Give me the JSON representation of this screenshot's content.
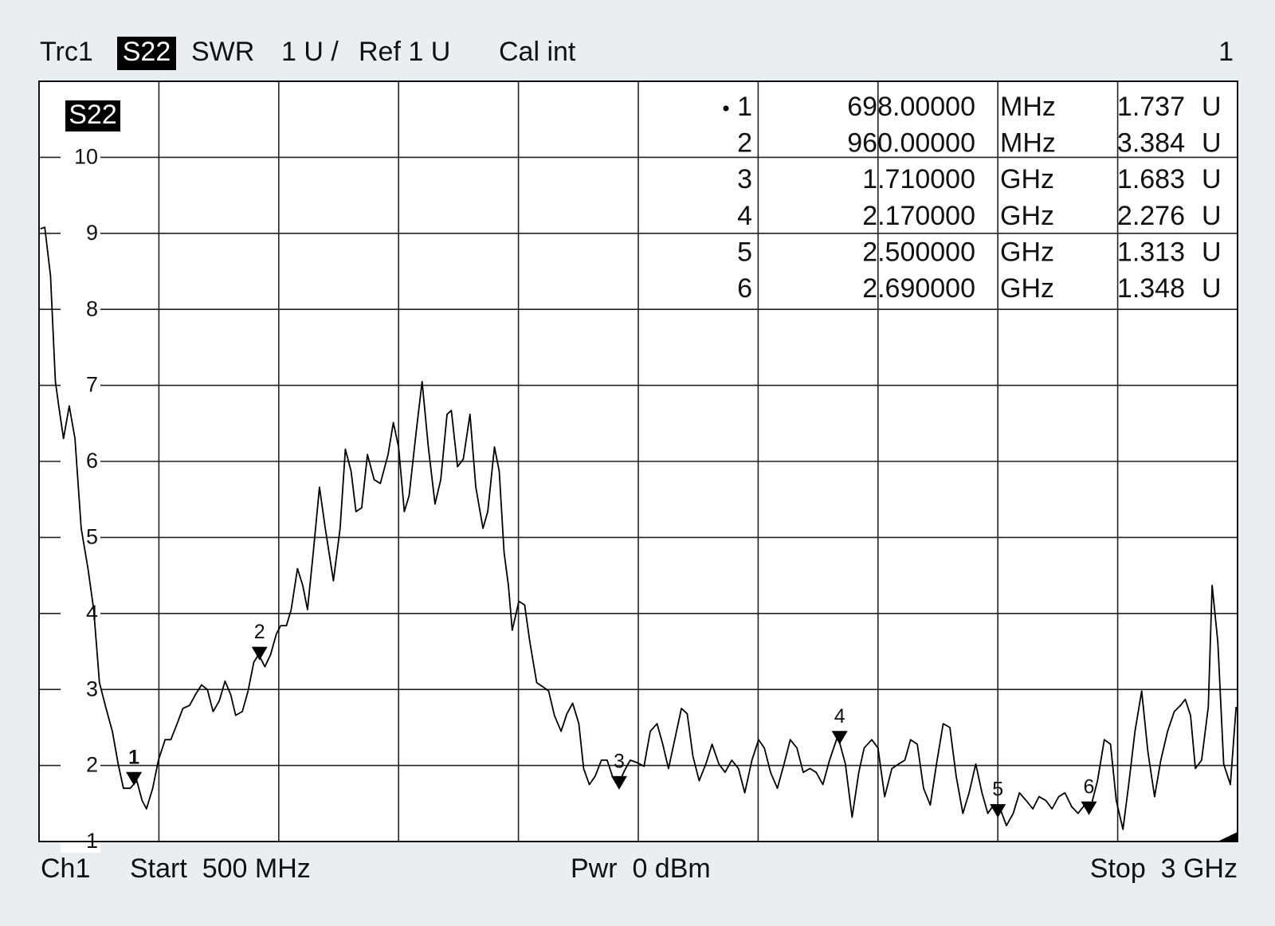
{
  "chart_data": {
    "type": "line",
    "trace": "Trc1",
    "measurement": "S22",
    "format": "SWR",
    "scale": "1 U /",
    "reference": "Ref 1 U",
    "calibration": "Cal int",
    "window": "1",
    "channel": "Ch1",
    "start": "Start  500 MHz",
    "power": "Pwr  0 dBm",
    "stop": "Stop  3 GHz",
    "color": "#000000",
    "grid": true,
    "xlim": [
      500,
      3000
    ],
    "xticks": [
      500,
      750,
      1000,
      1250,
      1500,
      1750,
      2000,
      2250,
      2500,
      2750,
      3000
    ],
    "ylim": [
      1,
      11
    ],
    "yticks": [
      1,
      2,
      3,
      4,
      5,
      6,
      7,
      8,
      9,
      10
    ],
    "x": [
      503,
      512,
      524,
      534,
      541,
      551,
      563,
      575,
      588,
      602,
      614,
      626,
      639,
      653,
      665,
      676,
      690,
      704,
      715,
      724,
      737,
      749,
      763,
      775,
      788,
      800,
      814,
      826,
      839,
      851,
      863,
      876,
      888,
      900,
      910,
      924,
      936,
      948,
      958,
      971,
      983,
      995,
      1004,
      1016,
      1026,
      1039,
      1050,
      1060,
      1072,
      1085,
      1097,
      1114,
      1128,
      1139,
      1151,
      1161,
      1173,
      1185,
      1199,
      1212,
      1228,
      1239,
      1250,
      1262,
      1272,
      1287,
      1299,
      1312,
      1326,
      1338,
      1351,
      1360,
      1373,
      1385,
      1399,
      1411,
      1426,
      1436,
      1450,
      1460,
      1470,
      1479,
      1487,
      1501,
      1513,
      1524,
      1538,
      1552,
      1563,
      1575,
      1589,
      1601,
      1613,
      1626,
      1636,
      1648,
      1660,
      1673,
      1685,
      1696,
      1708,
      1721,
      1733,
      1747,
      1762,
      1775,
      1789,
      1801,
      1813,
      1826,
      1840,
      1852,
      1864,
      1877,
      1891,
      1904,
      1918,
      1931,
      1945,
      1959,
      1972,
      1987,
      2001,
      2013,
      2026,
      2040,
      2054,
      2067,
      2081,
      2094,
      2108,
      2121,
      2135,
      2149,
      2166,
      2182,
      2196,
      2210,
      2221,
      2237,
      2250,
      2264,
      2279,
      2293,
      2306,
      2318,
      2332,
      2345,
      2359,
      2372,
      2386,
      2400,
      2413,
      2427,
      2440,
      2454,
      2467,
      2479,
      2491,
      2505,
      2518,
      2532,
      2545,
      2559,
      2573,
      2586,
      2600,
      2613,
      2627,
      2640,
      2654,
      2667,
      2681,
      2695,
      2708,
      2722,
      2735,
      2747,
      2761,
      2773,
      2786,
      2800,
      2813,
      2827,
      2840,
      2854,
      2868,
      2881,
      2891,
      2902,
      2912,
      2925,
      2939,
      2947,
      2959,
      2971,
      2985,
      2997
    ],
    "values": [
      9.06,
      9.08,
      8.44,
      7.05,
      6.73,
      6.3,
      6.73,
      6.3,
      5.12,
      4.59,
      4.05,
      3.09,
      2.77,
      2.45,
      2.02,
      1.7,
      1.7,
      1.8,
      1.54,
      1.43,
      1.7,
      2.07,
      2.34,
      2.34,
      2.55,
      2.75,
      2.79,
      2.93,
      3.06,
      3.0,
      2.71,
      2.85,
      3.11,
      2.93,
      2.66,
      2.71,
      2.98,
      3.36,
      3.46,
      3.3,
      3.46,
      3.73,
      3.84,
      3.84,
      4.05,
      4.59,
      4.37,
      4.05,
      4.8,
      5.66,
      5.12,
      4.43,
      5.12,
      6.16,
      5.87,
      5.34,
      5.39,
      6.09,
      5.76,
      5.71,
      6.09,
      6.51,
      6.19,
      5.34,
      5.55,
      6.41,
      7.05,
      6.19,
      5.44,
      5.76,
      6.62,
      6.67,
      5.93,
      6.03,
      6.62,
      5.66,
      5.12,
      5.34,
      6.19,
      5.87,
      4.8,
      4.37,
      3.78,
      4.16,
      4.11,
      3.62,
      3.09,
      3.03,
      2.98,
      2.66,
      2.45,
      2.68,
      2.82,
      2.55,
      1.96,
      1.75,
      1.86,
      2.07,
      2.07,
      1.86,
      1.75,
      1.93,
      2.07,
      2.04,
      1.99,
      2.45,
      2.55,
      2.28,
      1.96,
      2.34,
      2.75,
      2.68,
      2.12,
      1.8,
      2.02,
      2.28,
      2.02,
      1.91,
      2.07,
      1.96,
      1.64,
      2.07,
      2.34,
      2.23,
      1.91,
      1.7,
      2.02,
      2.34,
      2.23,
      1.91,
      1.96,
      1.91,
      1.75,
      2.07,
      2.39,
      2.02,
      1.32,
      1.91,
      2.23,
      2.34,
      2.23,
      1.59,
      1.96,
      2.02,
      2.07,
      2.34,
      2.28,
      1.7,
      1.48,
      2.02,
      2.55,
      2.5,
      1.86,
      1.37,
      1.64,
      2.02,
      1.64,
      1.37,
      1.48,
      1.43,
      1.21,
      1.37,
      1.64,
      1.54,
      1.43,
      1.59,
      1.54,
      1.43,
      1.59,
      1.64,
      1.46,
      1.37,
      1.48,
      1.48,
      1.8,
      2.34,
      2.28,
      1.54,
      1.16,
      1.75,
      2.45,
      2.98,
      2.18,
      1.59,
      2.07,
      2.45,
      2.71,
      2.79,
      2.87,
      2.66,
      1.96,
      2.07,
      2.77,
      4.37,
      3.62,
      2.02,
      1.75,
      2.77
    ],
    "markers": [
      {
        "label": "1",
        "active": true,
        "x": 698,
        "x_label": "698.00000",
        "x_unit": "MHz",
        "value": 1.737,
        "value_unit": "U"
      },
      {
        "label": "2",
        "x": 960,
        "x_label": "960.00000",
        "x_unit": "MHz",
        "value": 3.384,
        "value_unit": "U"
      },
      {
        "label": "3",
        "x": 1710,
        "x_label": "1.710000",
        "x_unit": "GHz",
        "value": 1.683,
        "value_unit": "U"
      },
      {
        "label": "4",
        "x": 2170,
        "x_label": "2.170000",
        "x_unit": "GHz",
        "value": 2.276,
        "value_unit": "U"
      },
      {
        "label": "5",
        "x": 2500,
        "x_label": "2.500000",
        "x_unit": "GHz",
        "value": 1.313,
        "value_unit": "U"
      },
      {
        "label": "6",
        "x": 2690,
        "x_label": "2.690000",
        "x_unit": "GHz",
        "value": 1.348,
        "value_unit": "U"
      }
    ]
  }
}
